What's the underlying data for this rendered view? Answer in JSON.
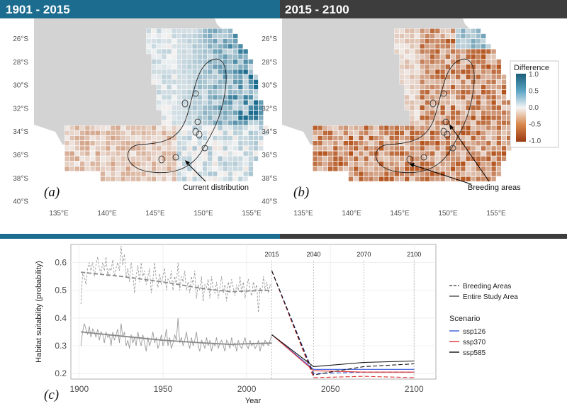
{
  "banners": {
    "left": "1901 - 2015",
    "right": "2015 - 2100"
  },
  "colors": {
    "banner_left": "#1b6c8f",
    "banner_right": "#3d3d3d",
    "land": "#d3d3d3",
    "positive": "#1b6c8f",
    "negative": "#b3521b",
    "neutral": "#f4f4f4"
  },
  "maps": {
    "lat_ticks": [
      "26°S",
      "28°S",
      "30°S",
      "32°S",
      "34°S",
      "36°S",
      "38°S",
      "40°S"
    ],
    "lon_ticks": [
      "135°E",
      "140°E",
      "145°E",
      "150°E",
      "155°E"
    ],
    "panel_a": {
      "label": "(a)",
      "annotation": "Current distribution"
    },
    "panel_b": {
      "label": "(b)",
      "annotation": "Breeding areas"
    }
  },
  "colorbar": {
    "title": "Difference",
    "ticks": [
      "1.0",
      "0.5",
      "0.0",
      "-0.5",
      "-1.0"
    ]
  },
  "chart_data": {
    "type": "line",
    "label": "(c)",
    "xlabel": "Year",
    "ylabel": "Habitat suitability (probability)",
    "xlim": [
      1895,
      2113
    ],
    "ylim": [
      0.18,
      0.665
    ],
    "xticks": [
      "1900",
      "1950",
      "2000",
      "2050",
      "2100"
    ],
    "yticks": [
      "0.2",
      "0.3",
      "0.4",
      "0.5",
      "0.6"
    ],
    "markers": [
      "2015",
      "2040",
      "2070",
      "2100"
    ],
    "historical_trend": {
      "breeding_areas": {
        "x": [
          1901,
          1925,
          1950,
          1975,
          1990,
          2015
        ],
        "y": [
          0.565,
          0.55,
          0.53,
          0.505,
          0.495,
          0.5
        ]
      },
      "entire_study_area": {
        "x": [
          1901,
          1925,
          1950,
          1975,
          1990,
          2015
        ],
        "y": [
          0.35,
          0.335,
          0.32,
          0.31,
          0.305,
          0.31
        ]
      }
    },
    "historical_annual": {
      "years_start": 1901,
      "breeding_areas": [
        0.45,
        0.56,
        0.55,
        0.52,
        0.58,
        0.6,
        0.57,
        0.6,
        0.55,
        0.59,
        0.62,
        0.58,
        0.56,
        0.6,
        0.57,
        0.62,
        0.55,
        0.58,
        0.57,
        0.61,
        0.55,
        0.58,
        0.6,
        0.57,
        0.66,
        0.59,
        0.63,
        0.55,
        0.58,
        0.53,
        0.6,
        0.56,
        0.49,
        0.55,
        0.59,
        0.53,
        0.6,
        0.55,
        0.57,
        0.52,
        0.55,
        0.58,
        0.49,
        0.54,
        0.6,
        0.54,
        0.51,
        0.56,
        0.52,
        0.55,
        0.58,
        0.5,
        0.54,
        0.53,
        0.57,
        0.5,
        0.55,
        0.52,
        0.6,
        0.5,
        0.55,
        0.53,
        0.57,
        0.5,
        0.53,
        0.49,
        0.55,
        0.52,
        0.57,
        0.47,
        0.52,
        0.5,
        0.55,
        0.46,
        0.52,
        0.51,
        0.54,
        0.47,
        0.55,
        0.5,
        0.49,
        0.53,
        0.47,
        0.51,
        0.55,
        0.49,
        0.52,
        0.46,
        0.53,
        0.5,
        0.54,
        0.51,
        0.48,
        0.52,
        0.5,
        0.55,
        0.49,
        0.53,
        0.47,
        0.51,
        0.54,
        0.5,
        0.48,
        0.53,
        0.5,
        0.52,
        0.42,
        0.51,
        0.49,
        0.55,
        0.5,
        0.53,
        0.49,
        0.52,
        0.51
      ],
      "entire_study_area": [
        0.3,
        0.35,
        0.38,
        0.36,
        0.34,
        0.37,
        0.33,
        0.36,
        0.35,
        0.33,
        0.36,
        0.32,
        0.35,
        0.34,
        0.31,
        0.35,
        0.33,
        0.34,
        0.3,
        0.35,
        0.32,
        0.34,
        0.36,
        0.31,
        0.38,
        0.33,
        0.35,
        0.3,
        0.32,
        0.29,
        0.34,
        0.31,
        0.33,
        0.3,
        0.35,
        0.32,
        0.3,
        0.34,
        0.31,
        0.28,
        0.33,
        0.3,
        0.32,
        0.35,
        0.31,
        0.33,
        0.29,
        0.31,
        0.34,
        0.3,
        0.32,
        0.36,
        0.3,
        0.33,
        0.29,
        0.31,
        0.34,
        0.32,
        0.4,
        0.31,
        0.33,
        0.3,
        0.32,
        0.35,
        0.31,
        0.29,
        0.33,
        0.3,
        0.32,
        0.35,
        0.3,
        0.28,
        0.32,
        0.31,
        0.29,
        0.33,
        0.3,
        0.32,
        0.28,
        0.31,
        0.3,
        0.33,
        0.29,
        0.31,
        0.32,
        0.3,
        0.28,
        0.32,
        0.31,
        0.29,
        0.33,
        0.3,
        0.31,
        0.28,
        0.32,
        0.3,
        0.29,
        0.31,
        0.33,
        0.3,
        0.29,
        0.32,
        0.3,
        0.31,
        0.29,
        0.3,
        0.32,
        0.28,
        0.31,
        0.3,
        0.32,
        0.31,
        0.3,
        0.32,
        0.34
      ]
    },
    "projections": {
      "x": [
        2015,
        2040,
        2070,
        2100
      ],
      "series": [
        {
          "scenario": "ssp126",
          "color": "#3b5bdb",
          "entire_study_area": [
            0.34,
            0.215,
            0.215,
            0.215
          ],
          "breeding_areas": [
            0.57,
            0.2,
            0.205,
            0.205
          ]
        },
        {
          "scenario": "ssp370",
          "color": "#e03131",
          "entire_study_area": [
            0.34,
            0.21,
            0.205,
            0.205
          ],
          "breeding_areas": [
            0.57,
            0.185,
            0.19,
            0.185
          ]
        },
        {
          "scenario": "ssp585",
          "color": "#111111",
          "entire_study_area": [
            0.34,
            0.225,
            0.24,
            0.245
          ],
          "breeding_areas": [
            0.57,
            0.195,
            0.225,
            0.235
          ]
        }
      ]
    },
    "legend": {
      "linetype_items": [
        "Breeding Areas",
        "Entire Study Area"
      ],
      "scenario_title": "Scenario",
      "scenario_items": [
        "ssp126",
        "ssp370",
        "ssp585"
      ]
    }
  }
}
